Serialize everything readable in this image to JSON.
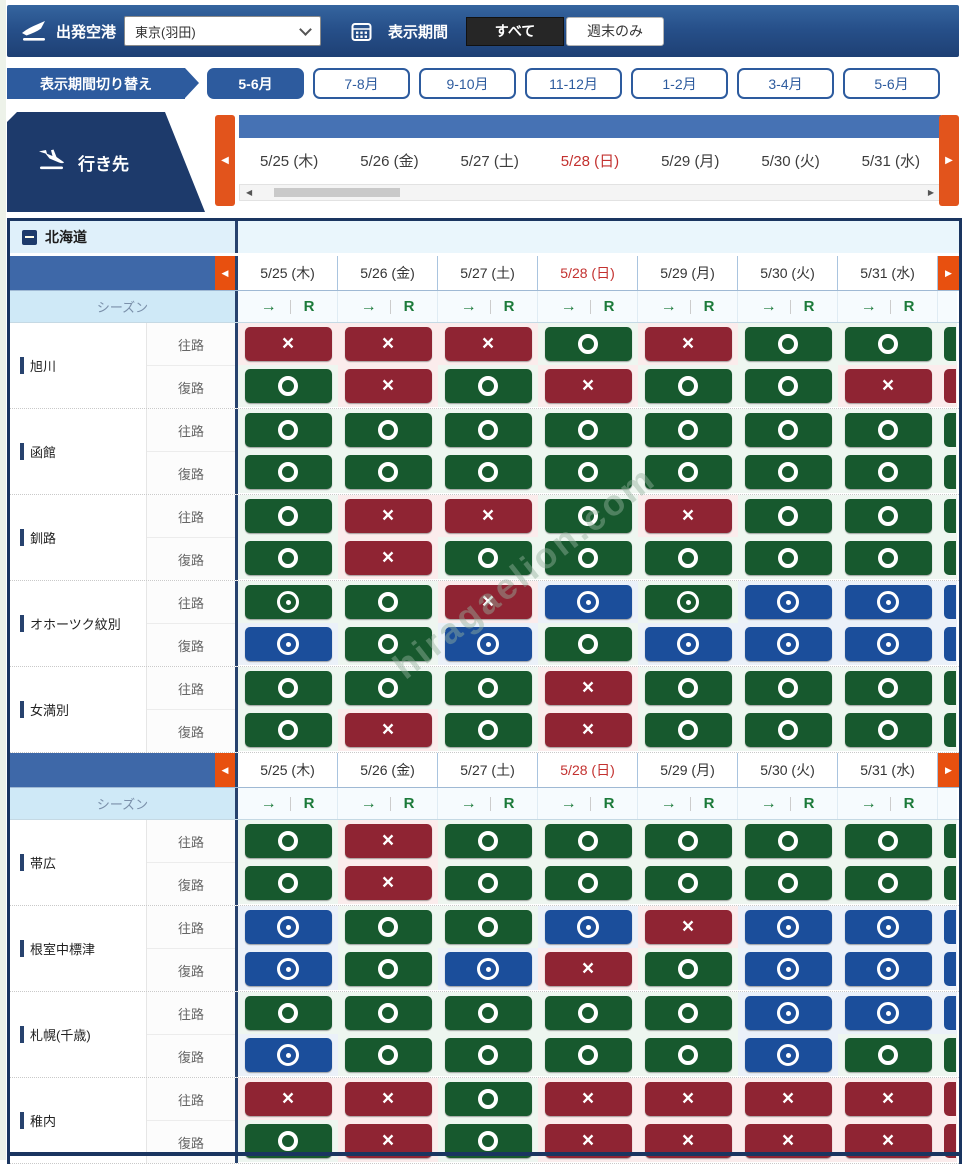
{
  "topbar": {
    "departure_label": "出発空港",
    "departure_value": "東京(羽田)",
    "period_label": "表示期間",
    "all_button": "すべて",
    "weekend_button": "週末のみ"
  },
  "period_switch": {
    "label": "表示期間切り替え",
    "selected_index": 0,
    "options": [
      "5-6月",
      "7-8月",
      "9-10月",
      "11-12月",
      "1-2月",
      "3-4月",
      "5-6月"
    ]
  },
  "destination_tab": {
    "label": "行き先"
  },
  "carousel": {
    "dates": [
      "5/25 (木)",
      "5/26 (金)",
      "5/27 (土)",
      "5/28 (日)",
      "5/29 (月)",
      "5/30 (火)",
      "5/31 (水)"
    ],
    "sunday_index": 3
  },
  "table": {
    "region_label": "北海道",
    "season_label": "シーズン",
    "direction_arrow": "→",
    "r_label": "R",
    "outbound_label": "往路",
    "return_label": "復路",
    "status_colors": {
      "g": "#17592e",
      "r": "#8f2433",
      "b": "#1b4e9b"
    },
    "status_legend": {
      "go": "green-circle",
      "gt": "green-double-circle",
      "bt": "blue-double-circle",
      "rx": "red-cross"
    },
    "blocks": [
      {
        "destinations": [
          {
            "name": "旭川",
            "out": [
              "rx",
              "rx",
              "rx",
              "go",
              "rx",
              "go",
              "go"
            ],
            "ret": [
              "go",
              "rx",
              "go",
              "rx",
              "go",
              "go",
              "rx"
            ]
          },
          {
            "name": "函館",
            "out": [
              "go",
              "go",
              "go",
              "go",
              "go",
              "go",
              "go"
            ],
            "ret": [
              "go",
              "go",
              "go",
              "go",
              "go",
              "go",
              "go"
            ]
          },
          {
            "name": "釧路",
            "out": [
              "go",
              "rx",
              "rx",
              "go",
              "rx",
              "go",
              "go"
            ],
            "ret": [
              "go",
              "rx",
              "go",
              "go",
              "go",
              "go",
              "go"
            ]
          },
          {
            "name": "オホーツク紋別",
            "out": [
              "gt",
              "go",
              "rx",
              "bt",
              "gt",
              "bt",
              "bt"
            ],
            "ret": [
              "bt",
              "go",
              "bt",
              "go",
              "bt",
              "bt",
              "bt"
            ]
          },
          {
            "name": "女満別",
            "out": [
              "go",
              "go",
              "go",
              "rx",
              "go",
              "go",
              "go"
            ],
            "ret": [
              "go",
              "rx",
              "go",
              "rx",
              "go",
              "go",
              "go"
            ]
          }
        ]
      },
      {
        "destinations": [
          {
            "name": "帯広",
            "out": [
              "go",
              "rx",
              "go",
              "go",
              "go",
              "go",
              "go"
            ],
            "ret": [
              "go",
              "rx",
              "go",
              "go",
              "go",
              "go",
              "go"
            ]
          },
          {
            "name": "根室中標津",
            "out": [
              "bt",
              "go",
              "go",
              "bt",
              "rx",
              "bt",
              "bt"
            ],
            "ret": [
              "bt",
              "go",
              "bt",
              "rx",
              "go",
              "bt",
              "bt"
            ]
          },
          {
            "name": "札幌(千歳)",
            "out": [
              "go",
              "go",
              "go",
              "go",
              "go",
              "bt",
              "bt"
            ],
            "ret": [
              "bt",
              "go",
              "go",
              "go",
              "go",
              "bt",
              "go"
            ]
          },
          {
            "name": "稚内",
            "out": [
              "rx",
              "rx",
              "go",
              "rx",
              "rx",
              "rx",
              "rx"
            ],
            "ret": [
              "go",
              "rx",
              "go",
              "rx",
              "rx",
              "rx",
              "rx"
            ]
          }
        ]
      }
    ]
  },
  "watermark": "hiragaelion.com"
}
